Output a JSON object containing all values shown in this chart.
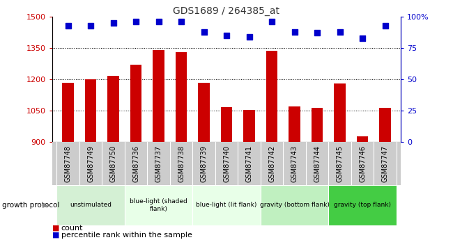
{
  "title": "GDS1689 / 264385_at",
  "samples": [
    "GSM87748",
    "GSM87749",
    "GSM87750",
    "GSM87736",
    "GSM87737",
    "GSM87738",
    "GSM87739",
    "GSM87740",
    "GSM87741",
    "GSM87742",
    "GSM87743",
    "GSM87744",
    "GSM87745",
    "GSM87746",
    "GSM87747"
  ],
  "counts": [
    1182,
    1200,
    1215,
    1270,
    1340,
    1330,
    1182,
    1065,
    1052,
    1335,
    1068,
    1063,
    1178,
    925,
    1062
  ],
  "percentile": [
    93,
    93,
    95,
    96,
    96,
    96,
    88,
    85,
    84,
    96,
    88,
    87,
    88,
    83,
    93
  ],
  "ymin": 900,
  "ymax": 1500,
  "yticks": [
    900,
    1050,
    1200,
    1350,
    1500
  ],
  "y2min": 0,
  "y2max": 100,
  "y2ticks": [
    0,
    25,
    50,
    75,
    100
  ],
  "bar_color": "#cc0000",
  "dot_color": "#0000cc",
  "yaxis_color": "#cc0000",
  "y2axis_color": "#0000cc",
  "groups": [
    {
      "label": "unstimulated",
      "start": 0,
      "end": 3,
      "color": "#d4f0d4"
    },
    {
      "label": "blue-light (shaded\nflank)",
      "start": 3,
      "end": 6,
      "color": "#e8ffe8"
    },
    {
      "label": "blue-light (lit flank)",
      "start": 6,
      "end": 9,
      "color": "#e8ffe8"
    },
    {
      "label": "gravity (bottom flank)",
      "start": 9,
      "end": 12,
      "color": "#c0f0c0"
    },
    {
      "label": "gravity (top flank)",
      "start": 12,
      "end": 15,
      "color": "#44cc44"
    }
  ],
  "group_row_label": "growth protocol",
  "legend_items": [
    {
      "label": "count",
      "color": "#cc0000"
    },
    {
      "label": "percentile rank within the sample",
      "color": "#0000cc"
    }
  ],
  "bar_width": 0.5,
  "dot_size": 35,
  "dot_marker": "s"
}
